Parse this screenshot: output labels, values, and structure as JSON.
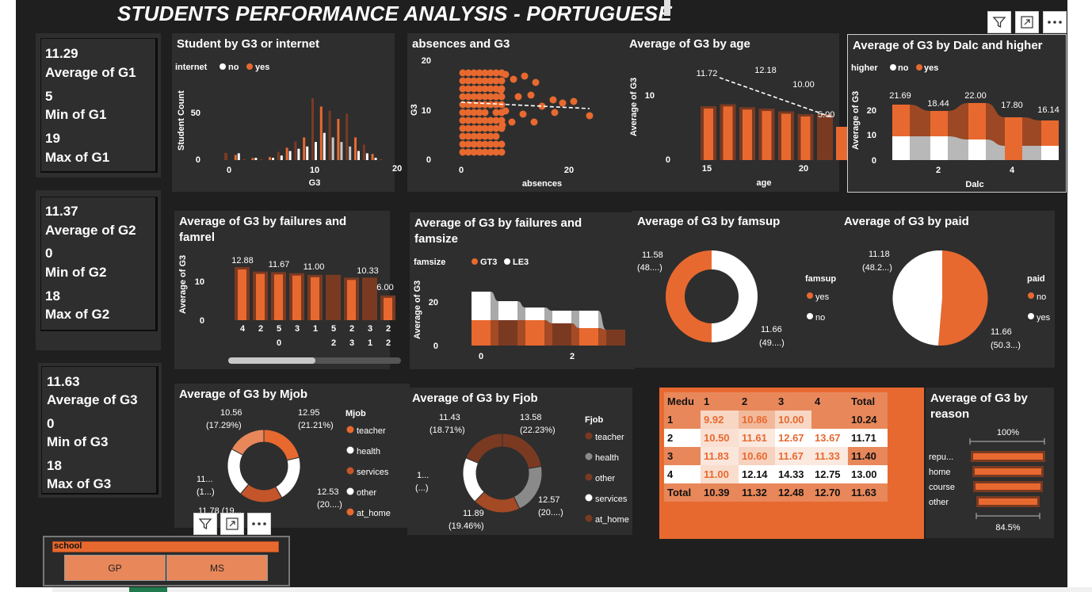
{
  "title": "STUDENTS PERFORMANCE ANALYSIS - PORTUGUESE",
  "colors": {
    "accent": "#e8692f",
    "dark_bar": "#7a3a22",
    "grey": "#c8c8c8",
    "white": "#ffffff",
    "bg": "#1f1f1f",
    "panel": "#2e2e2e"
  },
  "icons": [
    "filter-icon",
    "focus-mode-icon",
    "more-options-icon"
  ],
  "kpis": {
    "g1": {
      "avg_val": "11.29",
      "avg_lab": "Average of G1",
      "min_val": "5",
      "min_lab": "Min of G1",
      "max_val": "19",
      "max_lab": "Max of G1"
    },
    "g2": {
      "avg_val": "11.37",
      "avg_lab": "Average of G2",
      "min_val": "0",
      "min_lab": "Min of G2",
      "max_val": "18",
      "max_lab": "Max of G2"
    },
    "g3": {
      "avg_val": "11.63",
      "avg_lab": "Average of G3",
      "min_val": "0",
      "min_lab": "Min of G3",
      "max_val": "18",
      "max_lab": "Max of G3"
    }
  },
  "charts": {
    "internet": {
      "title": "Student by G3 or internet",
      "legend_title": "internet",
      "legend": [
        "no",
        "yes"
      ],
      "ylabel": "Student Count",
      "xlabel": "G3",
      "yticks": [
        "0",
        "50"
      ],
      "xticks": [
        "0",
        "10",
        "20"
      ]
    },
    "absences": {
      "title": "absences and G3",
      "ylabel": "G3",
      "xlabel": "absences",
      "yticks": [
        "0",
        "10",
        "20"
      ],
      "xticks": [
        "0",
        "20"
      ]
    },
    "age": {
      "title": "Average of G3 by age",
      "ylabel": "Average of G3",
      "xlabel": "age",
      "yticks": [
        "0",
        "10"
      ],
      "xticks": [
        "15",
        "20"
      ],
      "labels": [
        "11.72",
        "12.18",
        "10.00",
        "5.00"
      ]
    },
    "dalc": {
      "title": "Average of G3 by Dalc and higher",
      "legend_title": "higher",
      "legend": [
        "no",
        "yes"
      ],
      "ylabel": "Average of G3",
      "xlabel": "Dalc",
      "yticks": [
        "0",
        "10",
        "20"
      ],
      "xticks": [
        "2",
        "4"
      ],
      "labels": [
        "21.69",
        "18.44",
        "22.00",
        "17.80",
        "16.14"
      ]
    },
    "famrel": {
      "title": "Average of G3 by failures and\nfamrel",
      "ylabel": "Average of G3",
      "yticks": [
        "0",
        "10"
      ],
      "labels": [
        "12.88",
        "11.67",
        "11.00",
        "10.33",
        "6.00"
      ],
      "x_top": [
        "4",
        "2",
        "5",
        "3",
        "1",
        "5",
        "2",
        "3"
      ],
      "x_bottom": [
        "",
        "",
        "0",
        "",
        "",
        "2",
        "3",
        "1",
        "2"
      ]
    },
    "famsize": {
      "title": "Average of G3 by failures and\nfamsize",
      "legend_title": "famsize",
      "legend": [
        "GT3",
        "LE3"
      ],
      "ylabel": "Average of G3",
      "yticks": [
        "0",
        "20"
      ],
      "xticks": [
        "0",
        "2"
      ]
    },
    "famsup": {
      "title": "Average of G3 by famsup",
      "legend_title": "famsup",
      "legend": [
        "yes",
        "no"
      ],
      "lab_a": "11.58",
      "lab_a2": "(48....)",
      "lab_b": "11.66",
      "lab_b2": "(49....)"
    },
    "paid": {
      "title": "Average of G3 by paid",
      "legend_title": "paid",
      "legend": [
        "no",
        "yes"
      ],
      "lab_a": "11.18",
      "lab_a2": "(48.2...)",
      "lab_b": "11.66",
      "lab_b2": "(50.3...)"
    },
    "mjob": {
      "title": "Average of G3 by Mjob",
      "legend_title": "Mjob",
      "legend": [
        "teacher",
        "health",
        "services",
        "other",
        "at_home"
      ],
      "labels": {
        "tl": "10.56",
        "tl2": "(17.29%)",
        "tr": "12.95",
        "tr2": "(21.21%)",
        "l": "11...",
        "l2": "(1...)",
        "r": "12.53",
        "r2": "(20....)",
        "b": "11.78 (19..."
      }
    },
    "fjob": {
      "title": "Average of G3 by Fjob",
      "legend_title": "Fjob",
      "legend": [
        "teacher",
        "health",
        "other",
        "services",
        "at_home"
      ],
      "labels": {
        "tl": "11.43",
        "tl2": "(18.71%)",
        "tr": "13.58",
        "tr2": "(22.23%)",
        "l": "1...",
        "l2": "(...)",
        "r": "12.57",
        "r2": "(20....)",
        "b": "11.89",
        "b2": "(19.46%)"
      }
    },
    "reason": {
      "title": "Average of G3 by\nreason",
      "top_pct": "100%",
      "bottom_pct": "84.5%",
      "categories": [
        "repu...",
        "home",
        "course",
        "other"
      ]
    }
  },
  "matrix": {
    "header": [
      "Medu",
      "1",
      "2",
      "3",
      "4",
      "Total"
    ],
    "rows": [
      [
        "1",
        "9.92",
        "10.86",
        "10.00",
        "",
        "10.24"
      ],
      [
        "2",
        "10.50",
        "11.61",
        "12.67",
        "13.67",
        "11.71"
      ],
      [
        "3",
        "11.83",
        "10.60",
        "11.67",
        "11.33",
        "11.40"
      ],
      [
        "4",
        "11.00",
        "12.14",
        "14.33",
        "12.75",
        "13.00"
      ],
      [
        "Total",
        "10.39",
        "11.32",
        "12.48",
        "12.70",
        "11.63"
      ]
    ]
  },
  "slicer": {
    "title": "school",
    "options": [
      "GP",
      "MS"
    ]
  },
  "chart_data": [
    {
      "type": "bar",
      "title": "Student by G3 or internet",
      "xlabel": "G3",
      "ylabel": "Student Count",
      "series": [
        {
          "name": "no",
          "values": [
            3,
            0,
            1,
            0,
            1,
            2,
            4,
            5,
            6,
            8,
            12,
            10,
            8,
            6,
            4,
            3,
            1,
            0,
            0
          ]
        },
        {
          "name": "yes",
          "values": [
            5,
            1,
            2,
            1,
            3,
            8,
            12,
            18,
            22,
            60,
            52,
            48,
            40,
            45,
            22,
            15,
            6,
            1,
            0
          ]
        }
      ],
      "x": [
        1,
        2,
        3,
        4,
        5,
        6,
        7,
        8,
        9,
        10,
        11,
        12,
        13,
        14,
        15,
        16,
        17,
        18,
        19
      ]
    },
    {
      "type": "line",
      "title": "Average of G3 by age",
      "x": [
        15,
        16,
        17,
        18,
        19,
        20,
        21,
        22
      ],
      "values": [
        11.72,
        12.18,
        11.5,
        11.2,
        10.6,
        10.0,
        10.0,
        5.0
      ]
    },
    {
      "type": "bar",
      "title": "Average of G3 by Dalc and higher",
      "categories": [
        "1",
        "2",
        "3",
        "4",
        "5"
      ],
      "values": [
        21.69,
        18.44,
        22.0,
        17.8,
        16.14
      ]
    }
  ]
}
